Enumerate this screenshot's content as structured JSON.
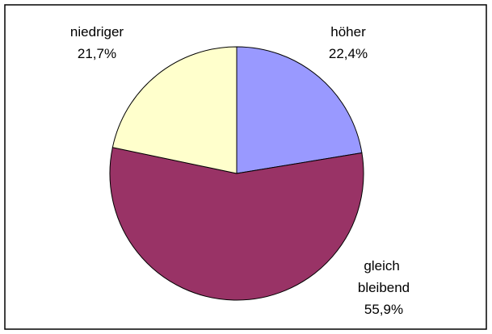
{
  "chart_data": {
    "type": "pie",
    "categories": [
      "höher",
      "gleich bleibend",
      "niedriger"
    ],
    "values": [
      22.4,
      55.9,
      21.7
    ],
    "value_labels": [
      "22,4%",
      "55,9%",
      "21,7%"
    ],
    "colors": [
      "#9999ff",
      "#993366",
      "#ffffcc"
    ]
  }
}
